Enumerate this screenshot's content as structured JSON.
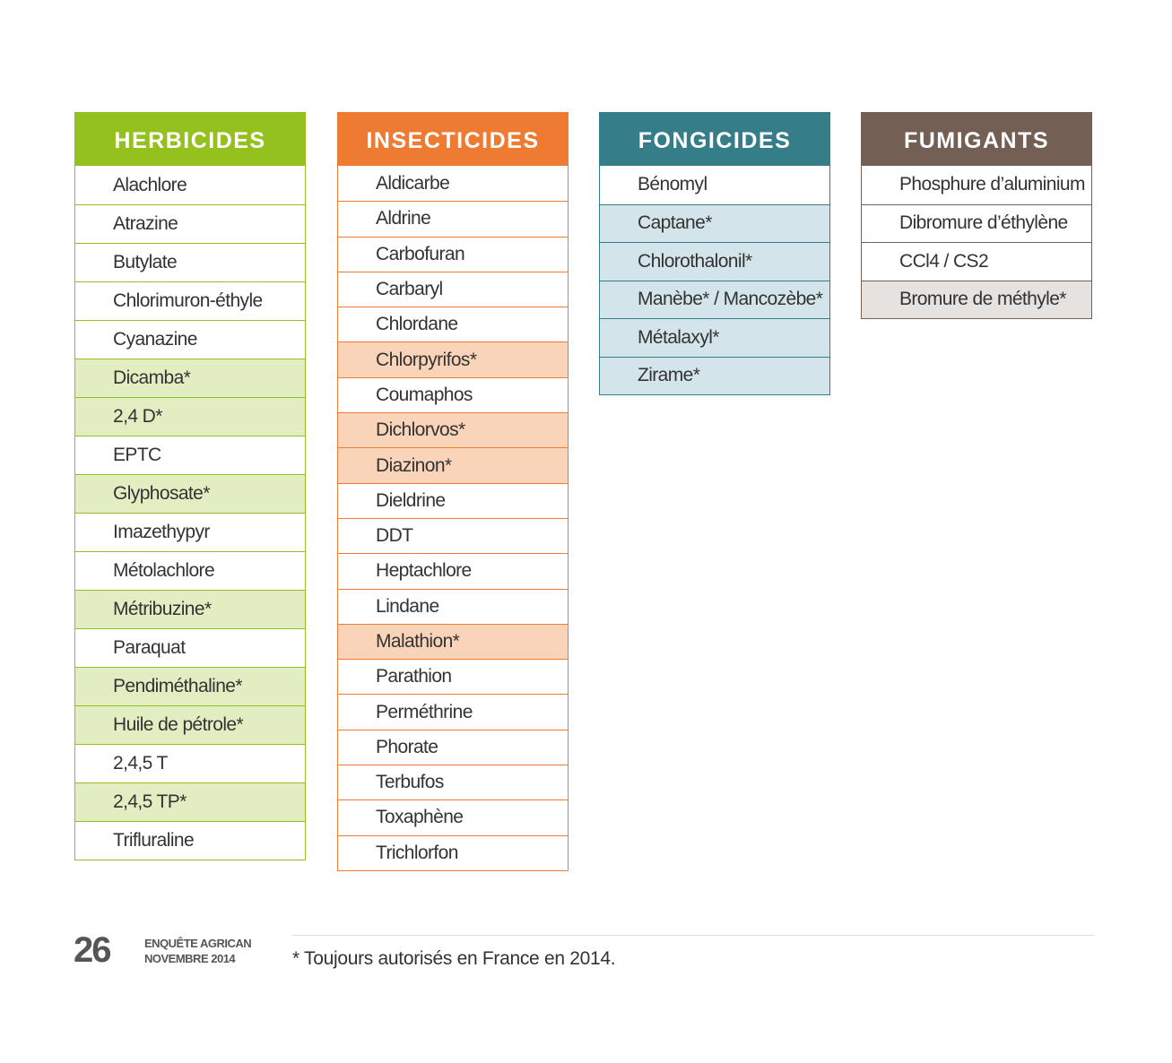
{
  "columns": [
    {
      "title": "HERBICIDES",
      "color": "#95c11f",
      "light_color": "#e2edc2",
      "items": [
        "Alachlore",
        "Atrazine",
        "Butylate",
        "Chlorimuron-éthyle",
        "Cyanazine",
        "Dicamba*",
        "2,4 D*",
        "EPTC",
        "Glyphosate*",
        "Imazethypyr",
        "Métolachlore",
        "Métribuzine*",
        "Paraquat",
        "Pendiméthaline*",
        "Huile de pétrole*",
        "2,4,5 T",
        "2,4,5 TP*",
        "Trifluraline"
      ]
    },
    {
      "title": "INSECTICIDES",
      "color": "#ef7b33",
      "light_color": "#f9d4b9",
      "items": [
        "Aldicarbe",
        "Aldrine",
        "Carbofuran",
        "Carbaryl",
        "Chlordane",
        "Chlorpyrifos*",
        "Coumaphos",
        "Dichlorvos*",
        "Diazinon*",
        "Dieldrine",
        "DDT",
        "Heptachlore",
        "Lindane",
        "Malathion*",
        "Parathion",
        "Perméthrine",
        "Phorate",
        "Terbufos",
        "Toxaphène",
        "Trichlorfon"
      ]
    },
    {
      "title": "FONGICIDES",
      "color": "#367d8a",
      "light_color": "#d3e5ea",
      "items": [
        "Bénomyl",
        "Captane*",
        "Chlorothalonil*",
        "Manèbe* / Mancozèbe*",
        "Métalaxyl*",
        "Zirame*"
      ]
    },
    {
      "title": "FUMIGANTS",
      "color": "#745f54",
      "light_color": "#e6e2e0",
      "items": [
        "Phosphure d’aluminium",
        "Dibromure d’éthylène",
        "CCl4 / CS2",
        "Bromure de méthyle*"
      ]
    }
  ],
  "footer": {
    "page_number": "26",
    "publication": [
      "ENQUÊTE AGRICAN",
      "NOVEMBRE 2014"
    ],
    "footnote": "* Toujours autorisés en France en 2014."
  }
}
